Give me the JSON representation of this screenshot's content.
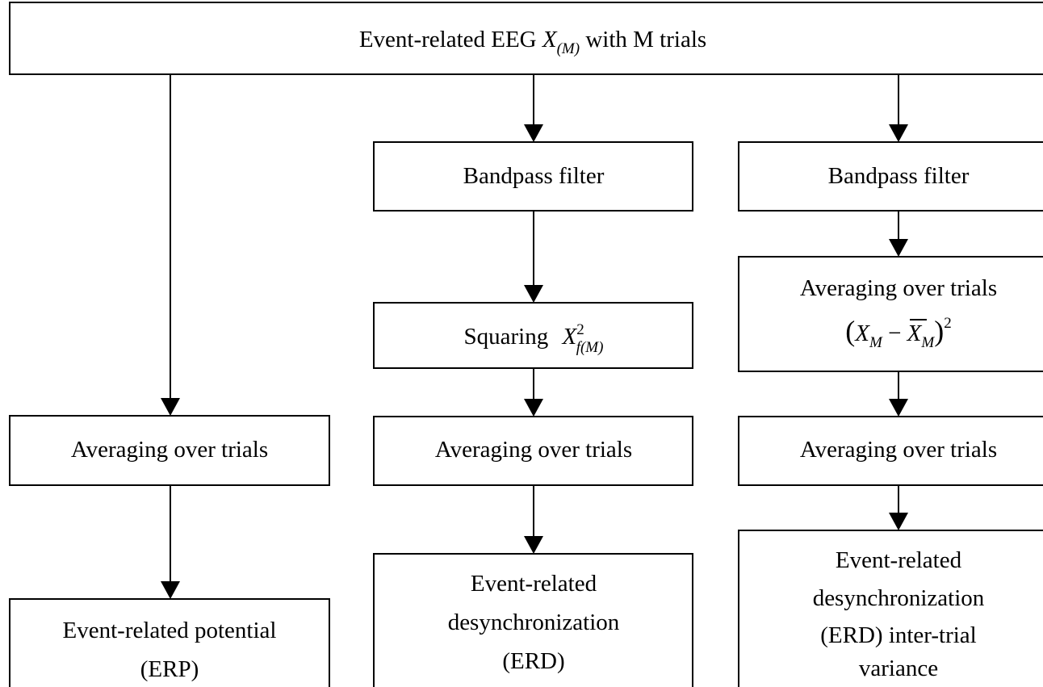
{
  "nodes": {
    "input": {
      "text": "Event-related EEG",
      "symbol": "X",
      "subscript": "(M)",
      "text_after": "with M trials"
    },
    "erp_average": {
      "label": "Averaging over trials"
    },
    "erp_output": {
      "lines": [
        "Event-related potential",
        "(ERP)"
      ]
    },
    "erd_filter": {
      "label": "Bandpass filter"
    },
    "erd_squaring": {
      "text": "Squaring",
      "symbol": "X",
      "superscript": "2",
      "subscript": "f(M)"
    },
    "erd_average": {
      "label": "Averaging over trials"
    },
    "erd_output": {
      "lines": [
        "Event-related",
        "desynchronization",
        "(ERD)"
      ]
    },
    "var_filter": {
      "label": "Bandpass filter"
    },
    "var_step": {
      "label": "Averaging over trials",
      "formula": {
        "open": "(",
        "symbol": "X",
        "subscript": "M",
        "operator": "−",
        "mean_symbol": "X",
        "mean_subscript": "M",
        "close": ")",
        "superscript": "2"
      }
    },
    "var_average": {
      "label": "Averaging over trials"
    },
    "var_output": {
      "lines": [
        "Event-related",
        "desynchronization",
        "(ERD) inter-trial",
        "variance"
      ]
    }
  }
}
